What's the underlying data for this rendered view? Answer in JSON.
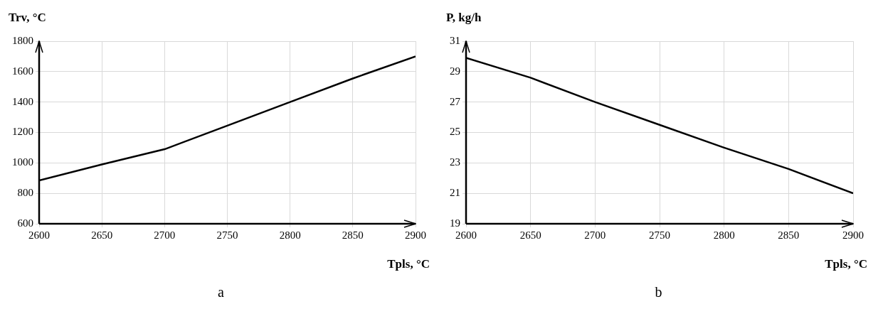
{
  "chart_data": [
    {
      "type": "line",
      "xlabel": "Tpls, °C",
      "ylabel": "Trv, °C",
      "x": [
        2600,
        2650,
        2700,
        2750,
        2800,
        2850,
        2900
      ],
      "series": [
        {
          "color": "#000000",
          "values": [
            885,
            990,
            1090,
            1245,
            1400,
            1555,
            1700
          ]
        }
      ],
      "xlim": [
        2600,
        2900
      ],
      "xticks": [
        2600,
        2650,
        2700,
        2750,
        2800,
        2850,
        2900
      ],
      "ylim": [
        600,
        1800
      ],
      "yticks": [
        600,
        800,
        1000,
        1200,
        1400,
        1600,
        1800
      ],
      "grid": true,
      "marker": "none",
      "line_style": "solid",
      "annotations": [
        "a"
      ]
    },
    {
      "type": "line",
      "xlabel": "Tpls, °C",
      "ylabel": "P, kg/h",
      "x": [
        2600,
        2650,
        2700,
        2750,
        2800,
        2850,
        2900
      ],
      "series": [
        {
          "color": "#000000",
          "values": [
            29.9,
            28.6,
            27,
            25.5,
            24,
            22.6,
            21
          ]
        }
      ],
      "xlim": [
        2600,
        2900
      ],
      "xticks": [
        2600,
        2650,
        2700,
        2750,
        2800,
        2850,
        2900
      ],
      "ylim": [
        19,
        31
      ],
      "yticks": [
        19,
        21,
        23,
        25,
        27,
        29,
        31
      ],
      "grid": true,
      "marker": "none",
      "line_style": "solid",
      "annotations": [
        "b"
      ]
    }
  ]
}
